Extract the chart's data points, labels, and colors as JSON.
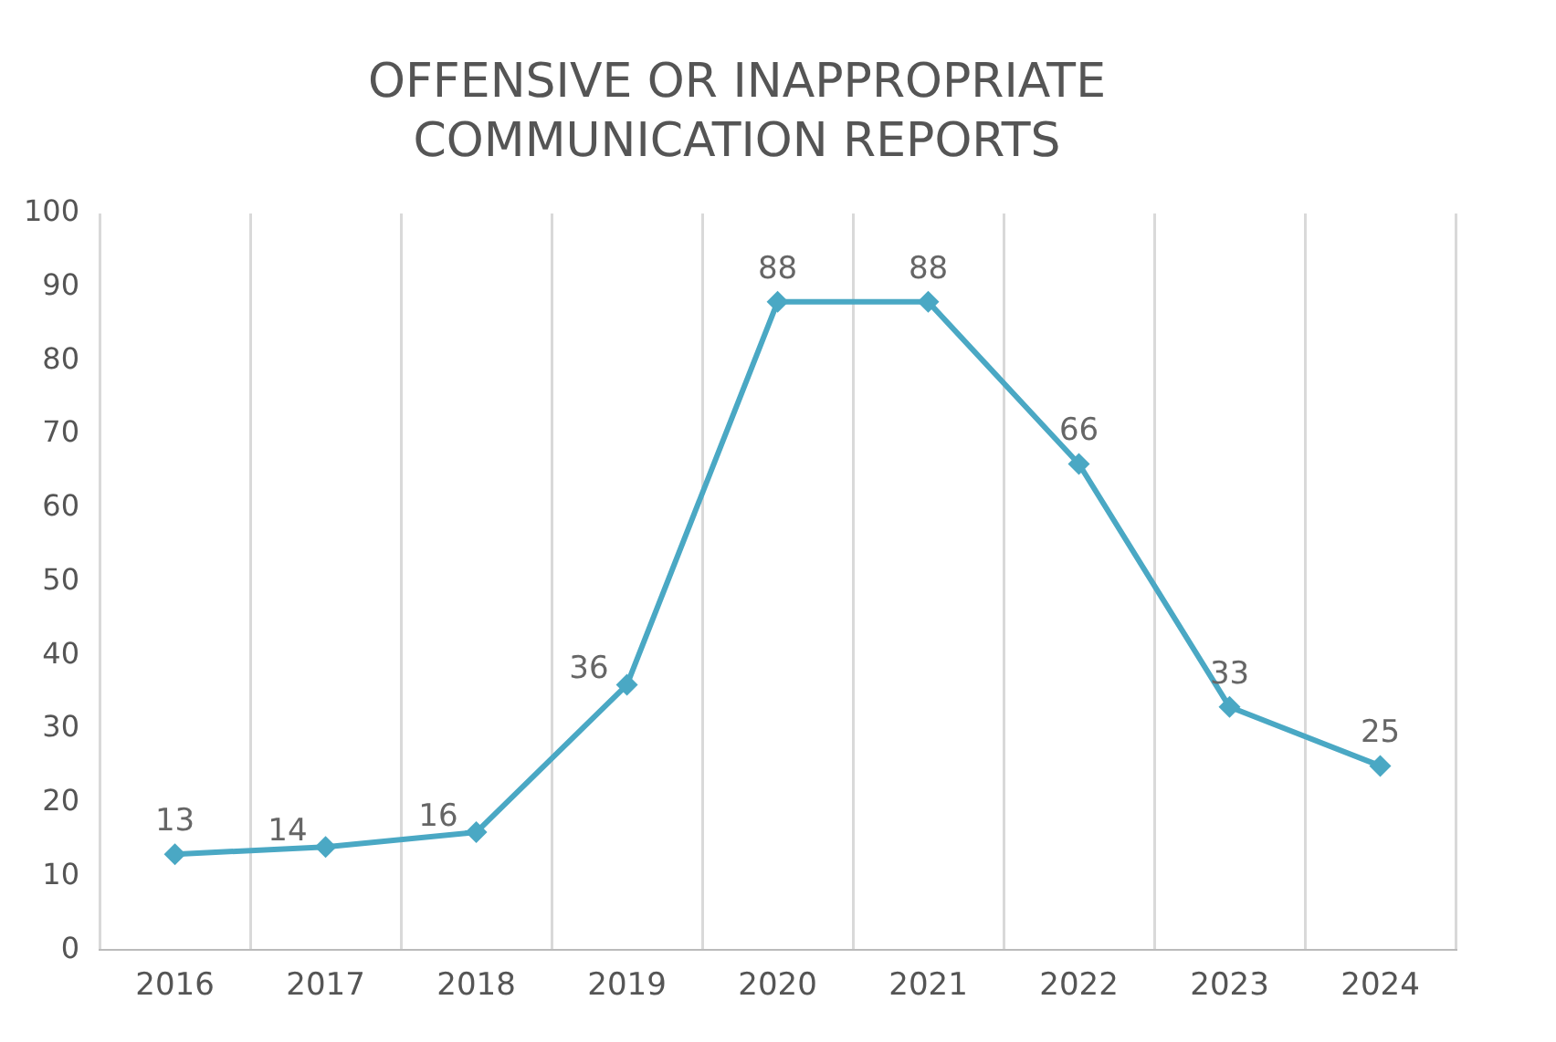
{
  "chart_data": {
    "type": "line",
    "title": "OFFENSIVE OR INAPPROPRIATE COMMUNICATION REPORTS",
    "categories": [
      "2016",
      "2017",
      "2018",
      "2019",
      "2020",
      "2021",
      "2022",
      "2023",
      "2024"
    ],
    "series": [
      {
        "color": "#4aa8c4",
        "values": [
          13,
          14,
          16,
          36,
          88,
          88,
          66,
          33,
          25
        ]
      }
    ],
    "ylim": [
      0,
      100
    ],
    "yticks": [
      0,
      10,
      20,
      30,
      40,
      50,
      60,
      70,
      80,
      90,
      100
    ],
    "grid": "x",
    "marker": "diamond",
    "line_style": "solid",
    "data_labels": true,
    "legend": false
  }
}
